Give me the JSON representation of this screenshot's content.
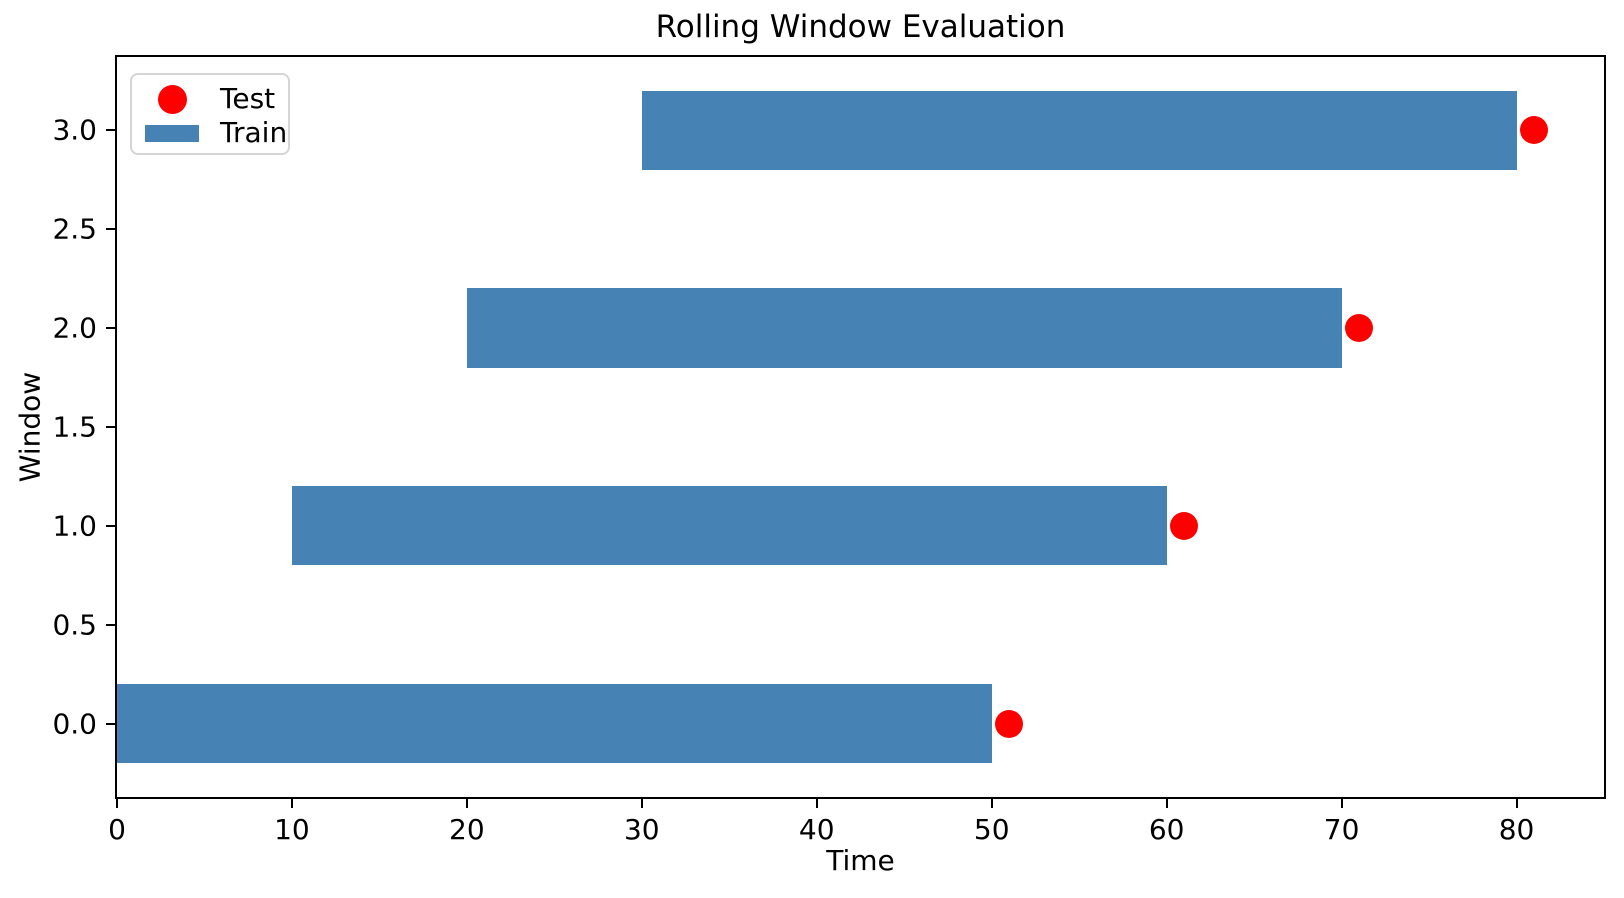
{
  "chart_data": {
    "type": "bar",
    "orientation": "horizontal",
    "title": "Rolling Window Evaluation",
    "xlabel": "Time",
    "ylabel": "Window",
    "xlim": [
      0,
      85
    ],
    "ylim": [
      -0.37,
      3.37
    ],
    "grid": false,
    "bar_height": 0.4,
    "xticks": [
      {
        "v": 0,
        "label": "0"
      },
      {
        "v": 10,
        "label": "10"
      },
      {
        "v": 20,
        "label": "20"
      },
      {
        "v": 30,
        "label": "30"
      },
      {
        "v": 40,
        "label": "40"
      },
      {
        "v": 50,
        "label": "50"
      },
      {
        "v": 60,
        "label": "60"
      },
      {
        "v": 70,
        "label": "70"
      },
      {
        "v": 80,
        "label": "80"
      }
    ],
    "yticks": [
      {
        "v": 0.0,
        "label": "0.0"
      },
      {
        "v": 0.5,
        "label": "0.5"
      },
      {
        "v": 1.0,
        "label": "1.0"
      },
      {
        "v": 1.5,
        "label": "1.5"
      },
      {
        "v": 2.0,
        "label": "2.0"
      },
      {
        "v": 2.5,
        "label": "2.5"
      },
      {
        "v": 3.0,
        "label": "3.0"
      }
    ],
    "series": [
      {
        "name": "Train",
        "type": "bar",
        "color": "#4682b4",
        "bars": [
          {
            "y": 0,
            "start": 0,
            "end": 50
          },
          {
            "y": 1,
            "start": 10,
            "end": 60
          },
          {
            "y": 2,
            "start": 20,
            "end": 70
          },
          {
            "y": 3,
            "start": 30,
            "end": 80
          }
        ]
      },
      {
        "name": "Test",
        "type": "scatter",
        "color": "#ff0000",
        "points": [
          {
            "x": 51,
            "y": 0
          },
          {
            "x": 61,
            "y": 1
          },
          {
            "x": 71,
            "y": 2
          },
          {
            "x": 81,
            "y": 3
          }
        ]
      }
    ],
    "legend": {
      "position": "upper left",
      "entries": [
        {
          "label": "Test",
          "marker": "circle",
          "color": "#ff0000"
        },
        {
          "label": "Train",
          "marker": "rect",
          "color": "#4682b4"
        }
      ]
    }
  }
}
